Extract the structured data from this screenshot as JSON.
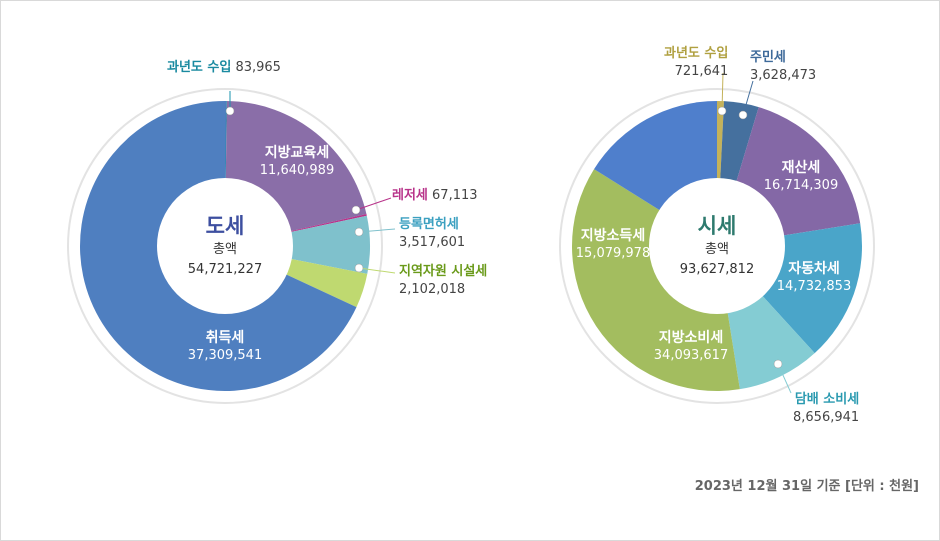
{
  "chart_data": [
    {
      "type": "pie",
      "title": "도세",
      "total_label": "총액",
      "total": "54,721,227",
      "slices": [
        {
          "label": "과년도 수입",
          "value": 83965,
          "display": "83,965",
          "color": "#1a93ac",
          "placement": "outside"
        },
        {
          "label": "지방교육세",
          "value": 11640989,
          "display": "11,640,989",
          "color": "#8a6ea8",
          "placement": "inside"
        },
        {
          "label": "레저세",
          "value": 67113,
          "display": "67,113",
          "color": "#b8338a",
          "placement": "outside"
        },
        {
          "label": "등록면허세",
          "value": 3517601,
          "display": "3,517,601",
          "color": "#7fc1cc",
          "placement": "outside"
        },
        {
          "label": "지역자원 시설세",
          "value": 2102018,
          "display": "2,102,018",
          "color": "#bfd970",
          "placement": "outside"
        },
        {
          "label": "취득세",
          "value": 37309541,
          "display": "37,309,541",
          "color": "#4f7fc0",
          "placement": "inside"
        }
      ]
    },
    {
      "type": "pie",
      "title": "시세",
      "total_label": "총액",
      "total": "93,627,812",
      "slices": [
        {
          "label": "과년도 수입",
          "value": 721641,
          "display": "721,641",
          "color": "#c4b25a",
          "placement": "outside"
        },
        {
          "label": "주민세",
          "value": 3628473,
          "display": "3,628,473",
          "color": "#45709e",
          "placement": "outside"
        },
        {
          "label": "재산세",
          "value": 16714309,
          "display": "16,714,309",
          "color": "#8468a6",
          "placement": "inside"
        },
        {
          "label": "자동차세",
          "value": 14732853,
          "display": "14,732,853",
          "color": "#4aa5c9",
          "placement": "inside"
        },
        {
          "label": "담배 소비세",
          "value": 8656941,
          "display": "8,656,941",
          "color": "#84ccd3",
          "placement": "outside"
        },
        {
          "label": "지방소비세",
          "value": 34093617,
          "display": "34,093,617",
          "color": "#a3bd5f",
          "placement": "inside"
        },
        {
          "label": "지방소득세",
          "value": 15079978,
          "display": "15,079,978",
          "color": "#4f7fcc",
          "placement": "inside"
        }
      ]
    }
  ],
  "note": "2023년 12월 31일 기준 [단위 : 천원]",
  "colors": {
    "province_title": "#3d4fa0",
    "city_title": "#2e7a6e"
  }
}
